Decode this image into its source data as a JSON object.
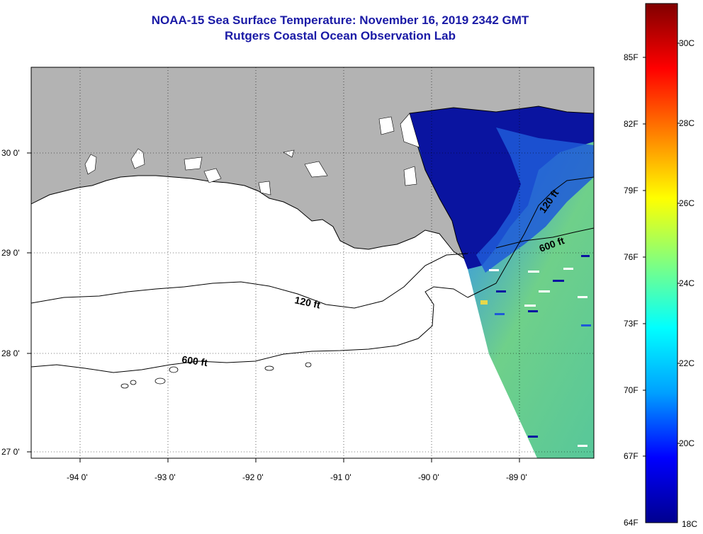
{
  "title": {
    "line1": "NOAA-15 Sea Surface Temperature:  November 16, 2019 2342 GMT",
    "line2": "Rutgers Coastal Ocean Observation Lab"
  },
  "map": {
    "lon_ticks": [
      "-94 0'",
      "-93 0'",
      "-92 0'",
      "-91 0'",
      "-90 0'",
      "-89 0'"
    ],
    "lat_ticks": [
      "30 0'",
      "29 0'",
      "28 0'",
      "27 0'"
    ],
    "contour_labels": [
      "120 ft",
      "600 ft",
      "120 ft",
      "600 ft"
    ],
    "colors": {
      "land": "#b3b3b3",
      "lake": "#ffffff",
      "coast_sst": "#0a14a0",
      "shelf_sst": "#1f5ad8",
      "offshore_sst": "#72d27a",
      "outline": "#000000"
    }
  },
  "colorbar": {
    "fahrenheit": [
      "85F",
      "82F",
      "79F",
      "76F",
      "73F",
      "70F",
      "67F",
      "64F"
    ],
    "celsius": [
      "30C",
      "28C",
      "26C",
      "24C",
      "22C",
      "20C",
      "18C"
    ],
    "gradient": [
      "#00008f",
      "#0000ff",
      "#00a0ff",
      "#00ffff",
      "#80ff80",
      "#ffff00",
      "#ff8000",
      "#ff0000",
      "#800000"
    ]
  }
}
